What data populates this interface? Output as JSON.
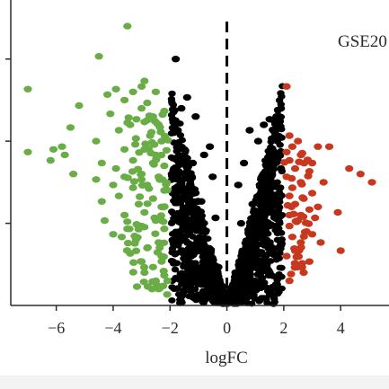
{
  "chart_data": {
    "type": "scatter",
    "title": "GSE20",
    "xlabel": "logFC",
    "ylabel": "",
    "xlim": [
      -7.6,
      5.7
    ],
    "ylim": [
      0,
      1.05
    ],
    "x_ticks": [
      -6,
      -4,
      -2,
      0,
      2,
      4
    ],
    "x_tick_labels": [
      "−6",
      "−4",
      "−2",
      "0",
      "2",
      "4"
    ],
    "y_ticks": [
      0.3,
      0.6,
      0.9
    ],
    "threshold_line_x": 0,
    "grid": false,
    "legend": "none",
    "colors": {
      "down": "#6aac46",
      "up": "#c8381f",
      "not_significant": "#000000",
      "axis": "#2b2b2b"
    },
    "series": [
      {
        "color_key": "down",
        "points": [
          [
            -3.5,
            1.02
          ],
          [
            -4.5,
            0.91
          ],
          [
            -7.0,
            0.79
          ],
          [
            -3.9,
            0.79
          ],
          [
            -5.2,
            0.73
          ],
          [
            -4.2,
            0.77
          ],
          [
            -2.9,
            0.82
          ],
          [
            -3.0,
            0.8
          ],
          [
            -3.3,
            0.78
          ],
          [
            -2.5,
            0.78
          ],
          [
            -3.6,
            0.75
          ],
          [
            -2.8,
            0.74
          ],
          [
            -4.1,
            0.7
          ],
          [
            -3.0,
            0.72
          ],
          [
            -2.2,
            0.71
          ],
          [
            -2.6,
            0.69
          ],
          [
            -5.5,
            0.65
          ],
          [
            -3.4,
            0.66
          ],
          [
            -2.9,
            0.67
          ],
          [
            -2.4,
            0.66
          ],
          [
            -3.8,
            0.64
          ],
          [
            -4.6,
            0.6
          ],
          [
            -5.8,
            0.58
          ],
          [
            -2.7,
            0.62
          ],
          [
            -3.2,
            0.61
          ],
          [
            -2.3,
            0.6
          ],
          [
            -6.1,
            0.57
          ],
          [
            -7.0,
            0.56
          ],
          [
            -5.7,
            0.55
          ],
          [
            -3.6,
            0.57
          ],
          [
            -2.9,
            0.57
          ],
          [
            -2.5,
            0.55
          ],
          [
            -4.4,
            0.52
          ],
          [
            -3.3,
            0.53
          ],
          [
            -2.6,
            0.52
          ],
          [
            -6.2,
            0.53
          ],
          [
            -3.9,
            0.5
          ],
          [
            -2.2,
            0.51
          ],
          [
            -5.4,
            0.48
          ],
          [
            -3.6,
            0.47
          ],
          [
            -3.0,
            0.48
          ],
          [
            -2.4,
            0.47
          ],
          [
            -4.6,
            0.46
          ],
          [
            -4.0,
            0.44
          ],
          [
            -2.8,
            0.44
          ],
          [
            -3.3,
            0.43
          ],
          [
            -2.2,
            0.42
          ],
          [
            -3.8,
            0.4
          ],
          [
            -2.6,
            0.39
          ],
          [
            -4.4,
            0.38
          ],
          [
            -3.1,
            0.37
          ],
          [
            -2.3,
            0.36
          ],
          [
            -2.9,
            0.34
          ],
          [
            -3.6,
            0.33
          ],
          [
            -4.3,
            0.31
          ],
          [
            -2.5,
            0.31
          ],
          [
            -3.0,
            0.29
          ],
          [
            -3.5,
            0.28
          ],
          [
            -2.2,
            0.28
          ],
          [
            -4.0,
            0.26
          ],
          [
            -3.7,
            0.25
          ],
          [
            -3.2,
            0.24
          ],
          [
            -2.4,
            0.23
          ],
          [
            -2.8,
            0.21
          ],
          [
            -3.4,
            0.19
          ],
          [
            -2.3,
            0.18
          ],
          [
            -3.0,
            0.16
          ],
          [
            -2.6,
            0.14
          ],
          [
            -2.9,
            0.12
          ],
          [
            -2.2,
            0.11
          ],
          [
            -2.5,
            0.09
          ],
          [
            -2.4,
            0.06
          ],
          [
            -2.1,
            0.04
          ]
        ]
      },
      {
        "color_key": "up",
        "points": [
          [
            2.1,
            0.8
          ],
          [
            2.2,
            0.62
          ],
          [
            2.5,
            0.6
          ],
          [
            2.3,
            0.58
          ],
          [
            3.2,
            0.58
          ],
          [
            3.6,
            0.58
          ],
          [
            2.1,
            0.56
          ],
          [
            2.6,
            0.55
          ],
          [
            2.2,
            0.53
          ],
          [
            3.0,
            0.52
          ],
          [
            2.4,
            0.5
          ],
          [
            4.3,
            0.5
          ],
          [
            2.9,
            0.49
          ],
          [
            2.1,
            0.47
          ],
          [
            5.1,
            0.45
          ],
          [
            3.4,
            0.45
          ],
          [
            4.7,
            0.48
          ],
          [
            2.6,
            0.45
          ],
          [
            2.3,
            0.43
          ],
          [
            3.0,
            0.41
          ],
          [
            2.2,
            0.4
          ],
          [
            2.7,
            0.39
          ],
          [
            2.4,
            0.37
          ],
          [
            3.2,
            0.36
          ],
          [
            2.9,
            0.35
          ],
          [
            3.9,
            0.34
          ],
          [
            2.6,
            0.33
          ],
          [
            2.2,
            0.33
          ],
          [
            3.1,
            0.32
          ],
          [
            2.5,
            0.31
          ],
          [
            2.2,
            0.29
          ],
          [
            2.8,
            0.27
          ],
          [
            3.0,
            0.26
          ],
          [
            2.3,
            0.25
          ],
          [
            2.6,
            0.23
          ],
          [
            3.3,
            0.23
          ],
          [
            2.4,
            0.2
          ],
          [
            4.0,
            0.2
          ],
          [
            2.1,
            0.18
          ],
          [
            2.9,
            0.16
          ],
          [
            2.5,
            0.14
          ],
          [
            2.7,
            0.12
          ],
          [
            2.2,
            0.09
          ]
        ]
      },
      {
        "color_key": "not_significant",
        "points": [
          [
            -1.8,
            0.9
          ],
          [
            -1.4,
            0.76
          ],
          [
            -1.6,
            0.72
          ],
          [
            1.9,
            0.72
          ],
          [
            -1.9,
            0.68
          ],
          [
            -1.1,
            0.69
          ],
          [
            1.5,
            0.68
          ],
          [
            1.3,
            0.66
          ],
          [
            0.8,
            0.64
          ],
          [
            1.7,
            0.62
          ],
          [
            1.1,
            0.6
          ],
          [
            -0.6,
            0.58
          ],
          [
            -1.5,
            0.57
          ],
          [
            -0.8,
            0.55
          ],
          [
            -1.2,
            0.52
          ],
          [
            1.6,
            0.55
          ],
          [
            0.6,
            0.52
          ],
          [
            -1.7,
            0.49
          ],
          [
            1.9,
            0.5
          ],
          [
            -0.5,
            0.47
          ],
          [
            0.4,
            0.44
          ],
          [
            1.2,
            0.46
          ],
          [
            -1.3,
            0.43
          ],
          [
            -1.9,
            0.41
          ],
          [
            1.8,
            0.4
          ],
          [
            -0.9,
            0.38
          ],
          [
            0.9,
            0.37
          ],
          [
            1.5,
            0.34
          ],
          [
            -1.6,
            0.33
          ],
          [
            -0.4,
            0.32
          ],
          [
            0.5,
            0.3
          ],
          [
            -1.1,
            0.29
          ],
          [
            1.2,
            0.27
          ],
          [
            -1.8,
            0.26
          ],
          [
            1.9,
            0.22
          ],
          [
            -0.7,
            0.21
          ],
          [
            0.7,
            0.2
          ],
          [
            -1.4,
            0.18
          ],
          [
            1.4,
            0.16
          ],
          [
            -0.3,
            0.14
          ],
          [
            0.3,
            0.12
          ],
          [
            -1.0,
            0.1
          ],
          [
            1.0,
            0.09
          ],
          [
            -0.5,
            0.06
          ],
          [
            0.5,
            0.05
          ],
          [
            -0.2,
            0.03
          ],
          [
            0.1,
            0.02
          ],
          [
            0.0,
            0.01
          ]
        ]
      }
    ]
  }
}
